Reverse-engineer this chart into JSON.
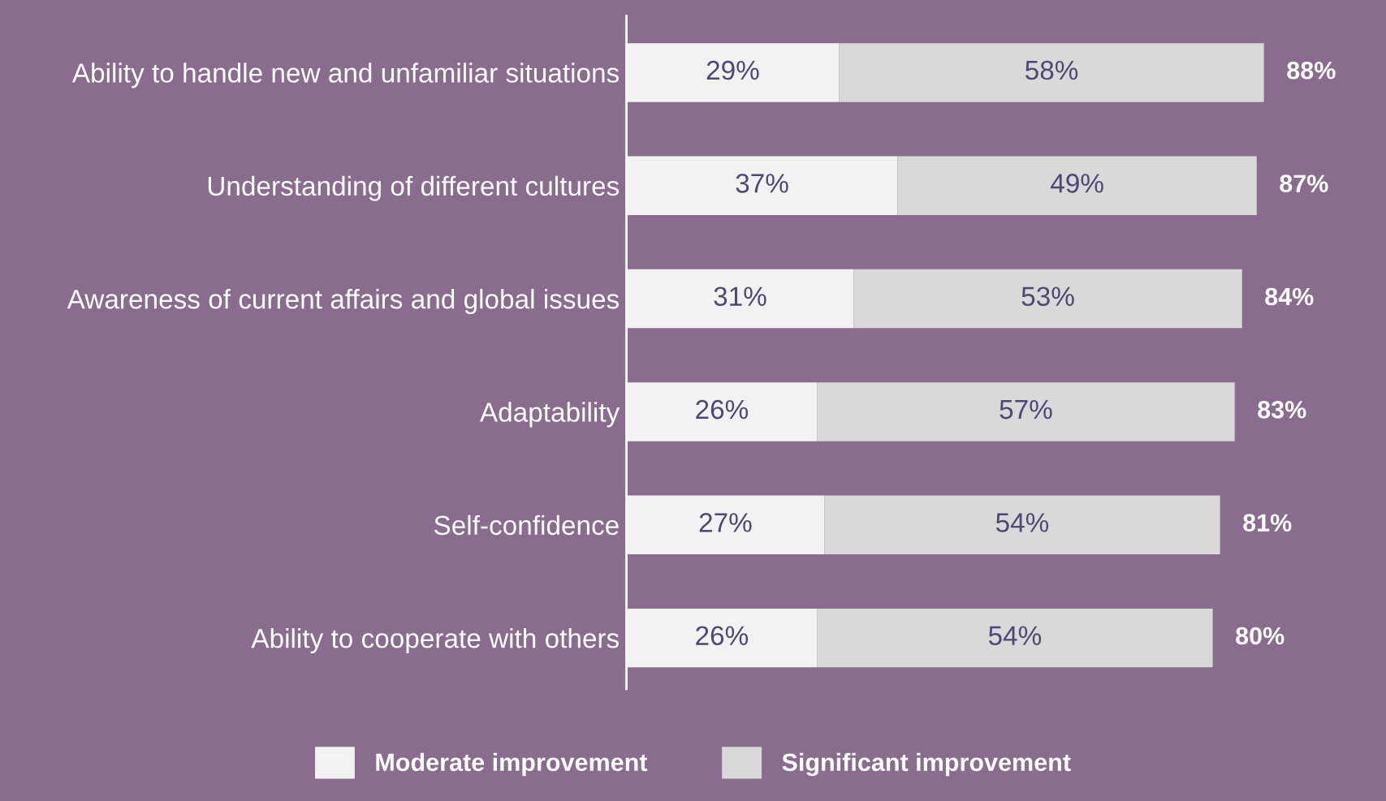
{
  "chart_data": {
    "type": "bar",
    "orientation": "horizontal",
    "stacked": true,
    "categories": [
      "Ability to handle new and unfamiliar situations",
      "Understanding of different cultures",
      "Awareness of current affairs and global issues",
      "Adaptability",
      "Self-confidence",
      "Ability to cooperate with others"
    ],
    "series": [
      {
        "name": "Moderate improvement",
        "color": "#f2f2f2",
        "values": [
          29,
          37,
          31,
          26,
          27,
          26
        ],
        "value_labels": [
          "29%",
          "37%",
          "31%",
          "26%",
          "27%",
          "26%"
        ]
      },
      {
        "name": "Significant improvement",
        "color": "#d9d9d9",
        "values": [
          58,
          49,
          53,
          57,
          54,
          54
        ],
        "value_labels": [
          "58%",
          "49%",
          "53%",
          "57%",
          "54%",
          "54%"
        ]
      }
    ],
    "totals": [
      "88%",
      "87%",
      "84%",
      "83%",
      "81%",
      "80%"
    ],
    "legend": "bottom",
    "grid": false
  }
}
